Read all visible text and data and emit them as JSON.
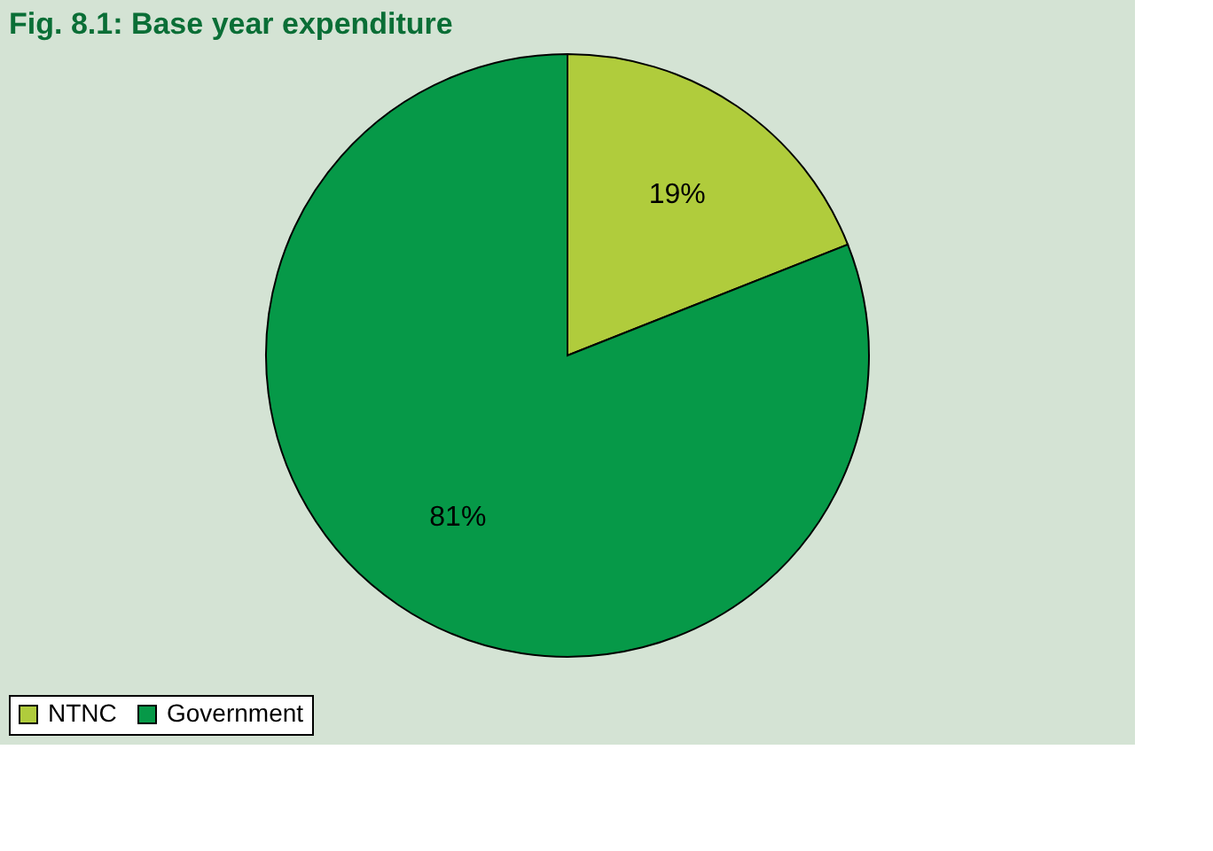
{
  "chart_data": {
    "type": "pie",
    "title": "Fig. 8.1:   Base year expenditure",
    "categories": [
      "NTNC",
      "Government"
    ],
    "values": [
      19,
      81
    ],
    "colors": [
      "#b0cc3c",
      "#069948"
    ],
    "value_labels": [
      "19%",
      "81%"
    ],
    "legend": "bottom"
  }
}
